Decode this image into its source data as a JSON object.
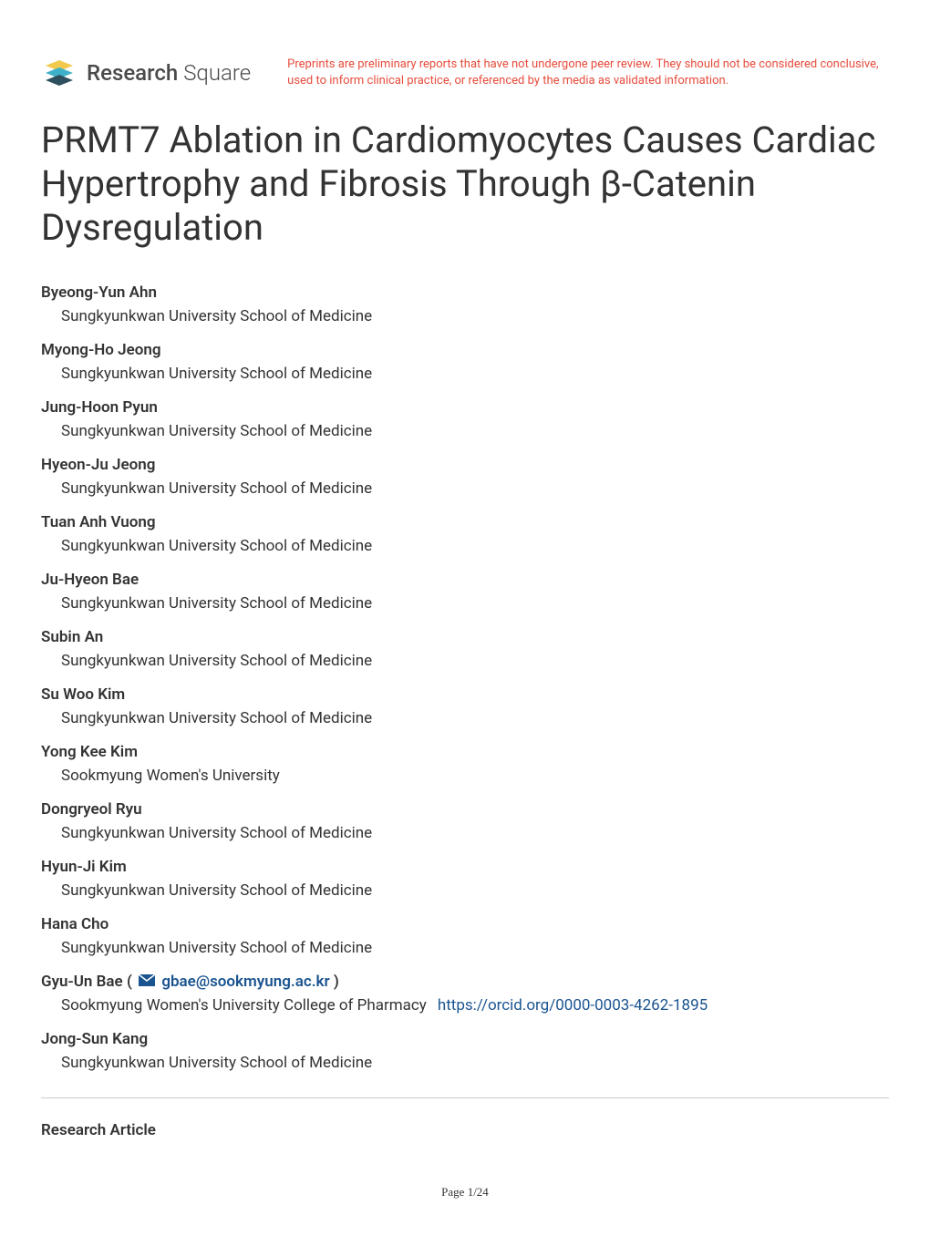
{
  "logo": {
    "brand_strong": "Research",
    "brand_light": "Square",
    "colors": {
      "teal": "#3eb1c8",
      "yellow": "#f2c94c",
      "dark": "#2d4f5e"
    }
  },
  "disclaimer": "Preprints are preliminary reports that have not undergone peer review. They should not be considered conclusive, used to inform clinical practice, or referenced by the media as validated information.",
  "title": "PRMT7 Ablation in Cardiomyocytes Causes Cardiac Hypertrophy and Fibrosis Through β-Catenin Dysregulation",
  "authors": [
    {
      "name": "Byeong-Yun Ahn",
      "affiliation": "Sungkyunkwan University School of Medicine"
    },
    {
      "name": "Myong-Ho Jeong",
      "affiliation": "Sungkyunkwan University School of Medicine"
    },
    {
      "name": "Jung-Hoon Pyun",
      "affiliation": "Sungkyunkwan University School of Medicine"
    },
    {
      "name": "Hyeon-Ju Jeong",
      "affiliation": "Sungkyunkwan University School of Medicine"
    },
    {
      "name": "Tuan Anh Vuong",
      "affiliation": "Sungkyunkwan University School of Medicine"
    },
    {
      "name": "Ju-Hyeon Bae",
      "affiliation": "Sungkyunkwan University School of Medicine"
    },
    {
      "name": "Subin An",
      "affiliation": "Sungkyunkwan University School of Medicine"
    },
    {
      "name": "Su Woo Kim",
      "affiliation": "Sungkyunkwan University School of Medicine"
    },
    {
      "name": "Yong Kee Kim",
      "affiliation": "Sookmyung Women's University"
    },
    {
      "name": "Dongryeol Ryu",
      "affiliation": "Sungkyunkwan University School of Medicine"
    },
    {
      "name": "Hyun-Ji Kim",
      "affiliation": "Sungkyunkwan University School of Medicine"
    },
    {
      "name": "Hana Cho",
      "affiliation": "Sungkyunkwan University School of Medicine"
    },
    {
      "name": "Gyu-Un Bae",
      "affiliation": "Sookmyung Women's University College of Pharmacy",
      "email": "gbae@sookmyung.ac.kr",
      "orcid": "https://orcid.org/0000-0003-4262-1895"
    },
    {
      "name": "Jong-Sun Kang",
      "affiliation": "Sungkyunkwan University School of Medicine"
    }
  ],
  "article_type": "Research Article",
  "page_label": "Page 1/24",
  "colors": {
    "disclaimer_text": "#e74c3c",
    "link_text": "#1a5490",
    "body_text": "#333333",
    "divider": "#cccccc"
  },
  "typography": {
    "title_fontsize": 40,
    "author_name_fontsize": 17,
    "affiliation_fontsize": 17,
    "disclaimer_fontsize": 13,
    "footer_fontsize": 13
  }
}
